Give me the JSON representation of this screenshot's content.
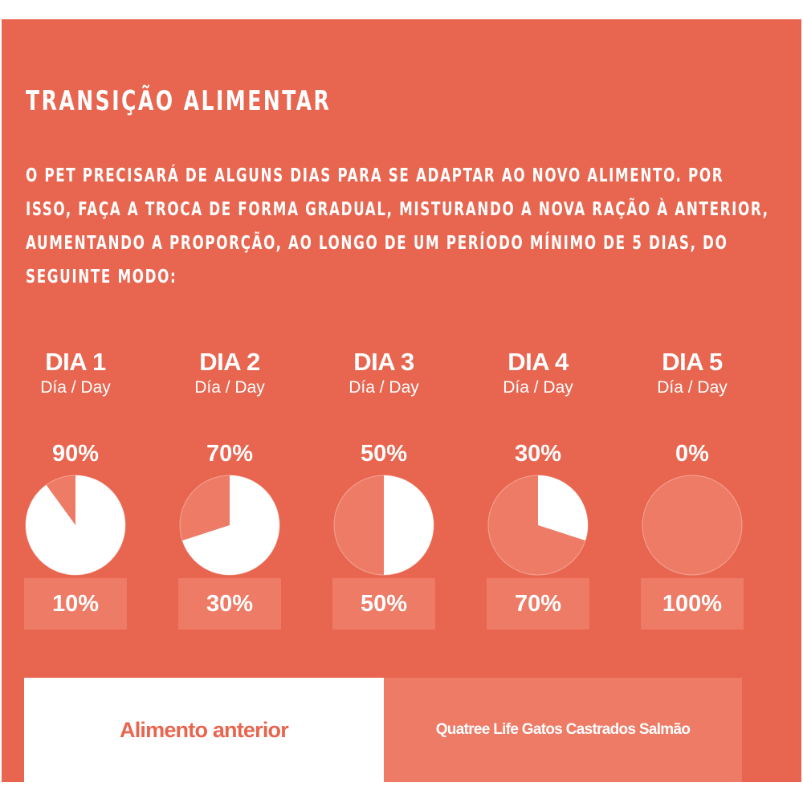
{
  "title": "Transição Alimentar",
  "intro": "O pet precisará de alguns dias para se adaptar ao novo alimento. Por isso, faça a troca de forma gradual, misturando a nova ração à anterior, aumentando a proporção, ao longo de um período mínimo de 5 dias, do seguinte modo:",
  "colors": {
    "background": "#e8654f",
    "previous_food": "#ffffff",
    "new_food": "#ed7b66"
  },
  "days": [
    {
      "label": "DIA 1",
      "sublabel": "Día / Day",
      "previous_pct": "90%",
      "new_pct": "10%",
      "previous_fraction": 0.9
    },
    {
      "label": "DIA 2",
      "sublabel": "Día / Day",
      "previous_pct": "70%",
      "new_pct": "30%",
      "previous_fraction": 0.7
    },
    {
      "label": "DIA 3",
      "sublabel": "Día / Day",
      "previous_pct": "50%",
      "new_pct": "50%",
      "previous_fraction": 0.5
    },
    {
      "label": "DIA 4",
      "sublabel": "Día / Day",
      "previous_pct": "30%",
      "new_pct": "70%",
      "previous_fraction": 0.3
    },
    {
      "label": "DIA 5",
      "sublabel": "Día / Day",
      "previous_pct": "0%",
      "new_pct": "100%",
      "previous_fraction": 0.0
    }
  ],
  "legend": {
    "previous": "Alimento anterior",
    "new": "Quatree Life Gatos Castrados Salmão"
  }
}
